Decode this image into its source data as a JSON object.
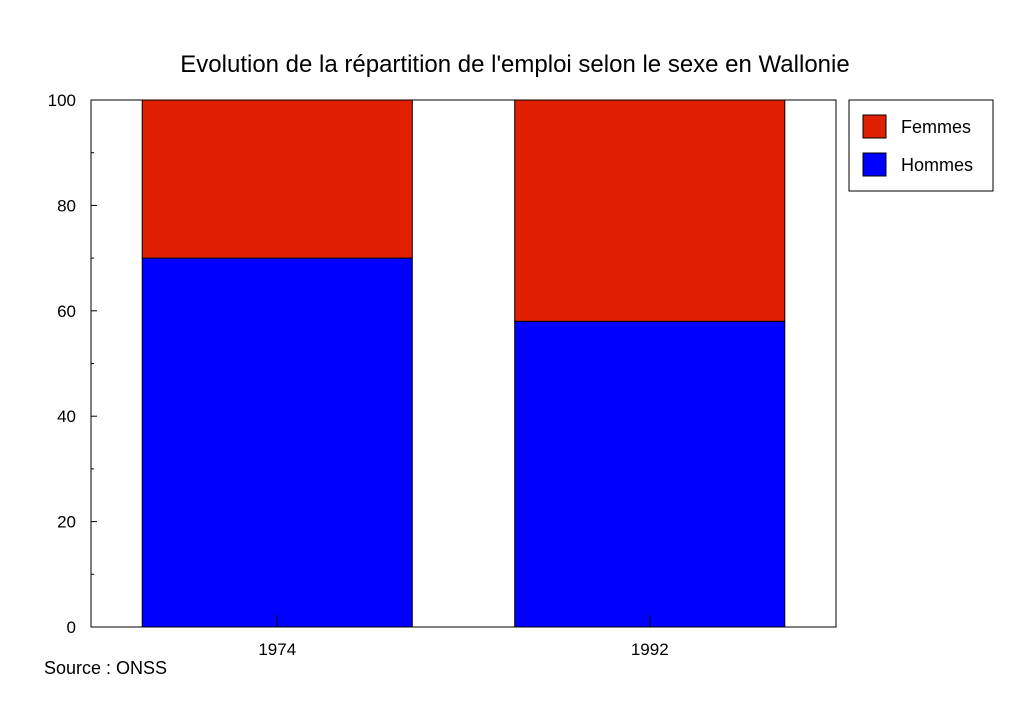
{
  "chart_data": {
    "type": "bar",
    "stacked": true,
    "title": "Evolution de la répartition de l'emploi selon le sexe en Wallonie",
    "xlabel": "",
    "ylabel": "",
    "categories": [
      "1974",
      "1992"
    ],
    "series": [
      {
        "name": "Hommes",
        "values": [
          70,
          58
        ],
        "color": "#0000ff"
      },
      {
        "name": "Femmes",
        "values": [
          30,
          42
        ],
        "color": "#e02000"
      }
    ],
    "ylim": [
      0,
      100
    ],
    "yticks": [
      "0",
      "20",
      "40",
      "60",
      "80",
      "100"
    ],
    "grid": false,
    "legend_position": "top-right"
  },
  "footer": {
    "source": "Source : ONSS"
  }
}
